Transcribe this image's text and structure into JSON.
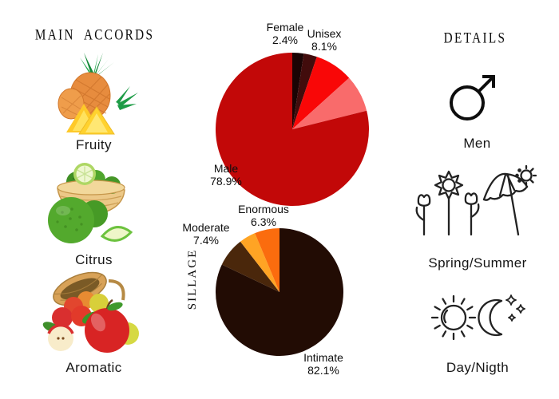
{
  "main_accords": {
    "header": "MAIN ACCORDS",
    "items": [
      {
        "label": "Fruity",
        "image": "pineapple-photo"
      },
      {
        "label": "Citrus",
        "image": "bergamot-basket-photo"
      },
      {
        "label": "Aromatic",
        "image": "apple-basket-photo"
      }
    ]
  },
  "details": {
    "header": "DETAILS",
    "items": [
      {
        "label": "Men",
        "icon": "male-symbol-icon"
      },
      {
        "label": "Spring/Summer",
        "icon": "flowers-umbrella-sun-icon"
      },
      {
        "label": "Day/Nigth",
        "icon": "sun-and-moon-icon"
      }
    ]
  },
  "chart_data": [
    {
      "type": "pie",
      "name": "gender-distribution",
      "direction": "clockwise",
      "start_angle_deg": 0,
      "legend_position": "none",
      "slices": [
        {
          "label": "Female",
          "pct_label": "2.4%",
          "value": 2.4,
          "color": "#1b0404"
        },
        {
          "label": "",
          "pct_label": "",
          "value": 2.8,
          "color": "#420c0c"
        },
        {
          "label": "Unisex",
          "pct_label": "8.1%",
          "value": 8.1,
          "color": "#f90707"
        },
        {
          "label": "",
          "pct_label": "",
          "value": 7.8,
          "color": "#f96b6b"
        },
        {
          "label": "Male",
          "pct_label": "78.9%",
          "value": 78.9,
          "color": "#c20808"
        }
      ]
    },
    {
      "type": "pie",
      "name": "sillage",
      "axis_label": "SILLAGE",
      "direction": "clockwise",
      "start_angle_deg": 0,
      "legend_position": "none",
      "slices": [
        {
          "label": "Intimate",
          "pct_label": "82.1%",
          "value": 82.1,
          "color": "#220c04"
        },
        {
          "label": "Moderate",
          "pct_label": "7.4%",
          "value": 7.4,
          "color": "#4a270b"
        },
        {
          "label": "",
          "pct_label": "",
          "value": 4.2,
          "color": "#ffa424"
        },
        {
          "label": "Enormous",
          "pct_label": "6.3%",
          "value": 6.3,
          "color": "#fb6c0e"
        }
      ]
    }
  ]
}
